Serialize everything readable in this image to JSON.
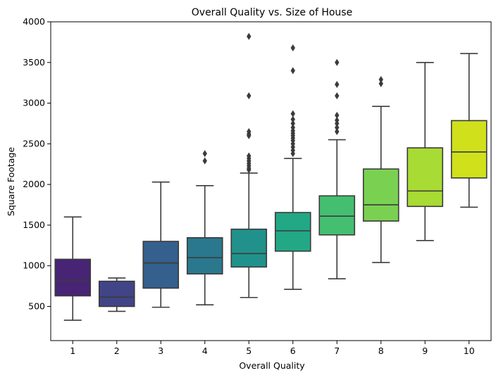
{
  "chart_data": {
    "type": "box",
    "title": "Overall Quality vs. Size of House",
    "xlabel": "Overall Quality",
    "ylabel": "Square Footage",
    "ylim": [
      80,
      4000
    ],
    "yticks": [
      500,
      1000,
      1500,
      2000,
      2500,
      3000,
      3500,
      4000
    ],
    "grid": false,
    "categories": [
      "1",
      "2",
      "3",
      "4",
      "5",
      "6",
      "7",
      "8",
      "9",
      "10"
    ],
    "colors": [
      "#482475",
      "#414487",
      "#355f8d",
      "#2a788e",
      "#21918c",
      "#22a884",
      "#44bf70",
      "#7ad151",
      "#a8db34",
      "#d0e11c"
    ],
    "boxes": [
      {
        "category": "1",
        "whisker_low": 330,
        "q1": 630,
        "median": 820,
        "q3": 1080,
        "whisker_high": 1600,
        "outliers": []
      },
      {
        "category": "2",
        "whisker_low": 440,
        "q1": 500,
        "median": 615,
        "q3": 810,
        "whisker_high": 850,
        "outliers": []
      },
      {
        "category": "3",
        "whisker_low": 490,
        "q1": 725,
        "median": 1035,
        "q3": 1300,
        "whisker_high": 2030,
        "outliers": []
      },
      {
        "category": "4",
        "whisker_low": 520,
        "q1": 900,
        "median": 1100,
        "q3": 1345,
        "whisker_high": 1985,
        "outliers": [
          2290,
          2380
        ]
      },
      {
        "category": "5",
        "whisker_low": 610,
        "q1": 985,
        "median": 1150,
        "q3": 1450,
        "whisker_high": 2140,
        "outliers": [
          2180,
          2200,
          2230,
          2260,
          2290,
          2320,
          2350,
          2600,
          2620,
          2650,
          3090,
          3820
        ]
      },
      {
        "category": "6",
        "whisker_low": 710,
        "q1": 1180,
        "median": 1430,
        "q3": 1655,
        "whisker_high": 2320,
        "outliers": [
          2380,
          2420,
          2460,
          2500,
          2540,
          2570,
          2600,
          2630,
          2660,
          2700,
          2750,
          2800,
          2870,
          3400,
          3680
        ]
      },
      {
        "category": "7",
        "whisker_low": 840,
        "q1": 1380,
        "median": 1610,
        "q3": 1860,
        "whisker_high": 2550,
        "outliers": [
          2650,
          2700,
          2750,
          2790,
          2850,
          3090,
          3230,
          3500
        ]
      },
      {
        "category": "8",
        "whisker_low": 1040,
        "q1": 1550,
        "median": 1750,
        "q3": 2190,
        "whisker_high": 2960,
        "outliers": [
          3240,
          3290
        ]
      },
      {
        "category": "9",
        "whisker_low": 1310,
        "q1": 1730,
        "median": 1920,
        "q3": 2450,
        "whisker_high": 3500,
        "outliers": []
      },
      {
        "category": "10",
        "whisker_low": 1720,
        "q1": 2080,
        "median": 2400,
        "q3": 2785,
        "whisker_high": 3610,
        "outliers": []
      }
    ]
  }
}
